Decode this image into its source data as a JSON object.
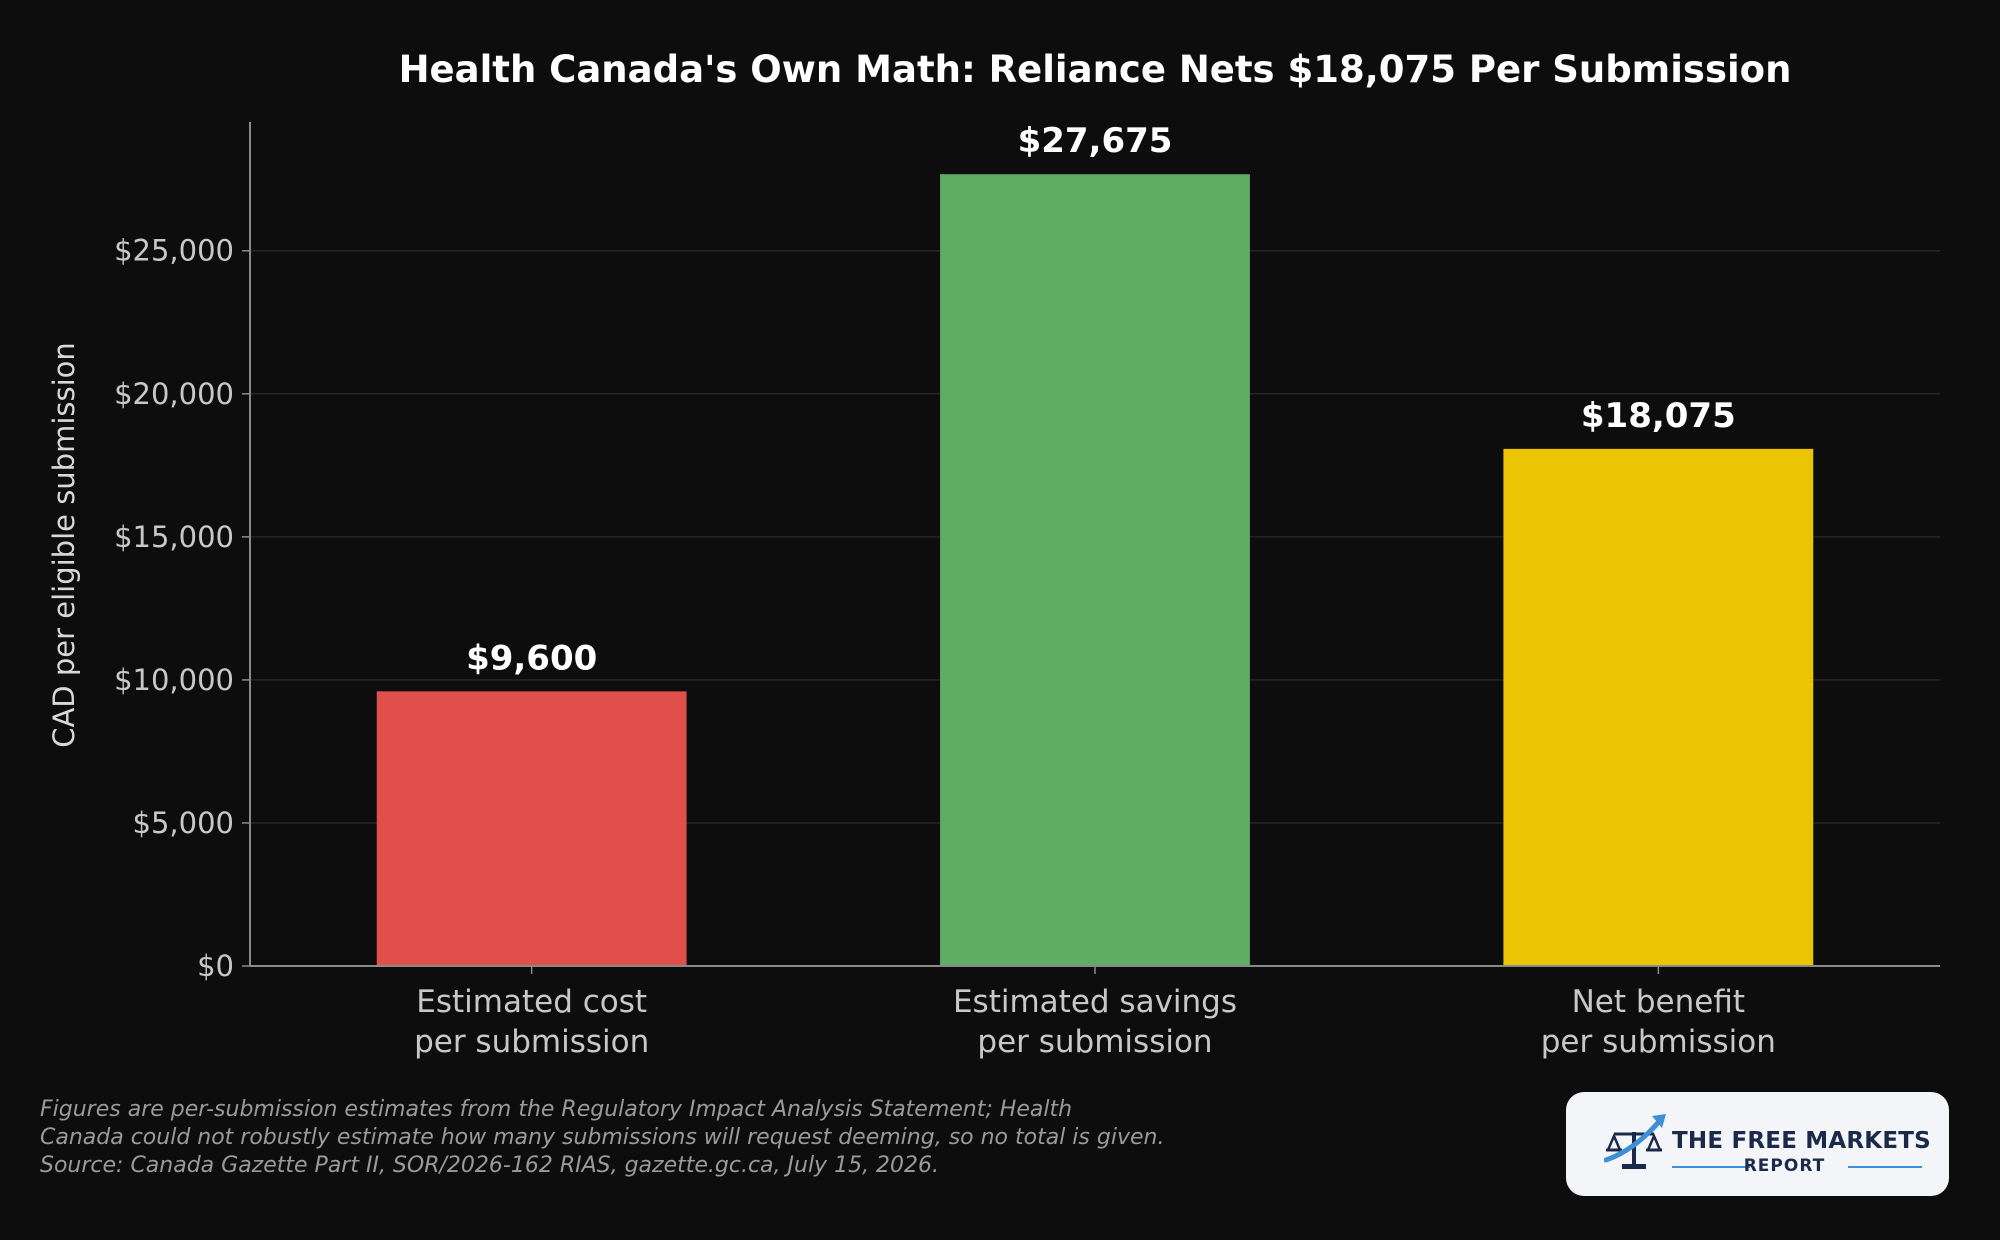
{
  "chart_data": {
    "type": "bar",
    "title": "Health Canada's Own Math: Reliance Nets $18,075 Per Submission",
    "ylabel": "CAD per eligible submission",
    "xlabel": "",
    "categories": [
      [
        "Estimated cost",
        "per submission"
      ],
      [
        "Estimated savings",
        "per submission"
      ],
      [
        "Net benefit",
        "per submission"
      ]
    ],
    "values": [
      9600,
      27675,
      18075
    ],
    "value_labels": [
      "$9,600",
      "$27,675",
      "$18,075"
    ],
    "colors": [
      "#e04f4a",
      "#5fad63",
      "#ebc503"
    ],
    "ylim": [
      0,
      29500
    ],
    "yticks": [
      0,
      5000,
      10000,
      15000,
      20000,
      25000
    ],
    "ytick_labels": [
      "$0",
      "$5,000",
      "$10,000",
      "$15,000",
      "$20,000",
      "$25,000"
    ],
    "grid": true
  },
  "footnote": {
    "lines": [
      "Figures are per-submission estimates from the Regulatory Impact Analysis Statement; Health",
      "Canada could not robustly estimate how many submissions will request deeming, so no total is given.",
      "Source: Canada Gazette Part II, SOR/2026-162 RIAS, gazette.gc.ca, July 15, 2026."
    ]
  },
  "logo": {
    "title": "THE FREE MARKETS",
    "subtitle": "REPORT"
  },
  "colors": {
    "background": "#0d0d0d",
    "text": "#ffffff",
    "tick_text": "#c8c8c8",
    "grid": "#262626",
    "axis": "#8a8a8a"
  }
}
